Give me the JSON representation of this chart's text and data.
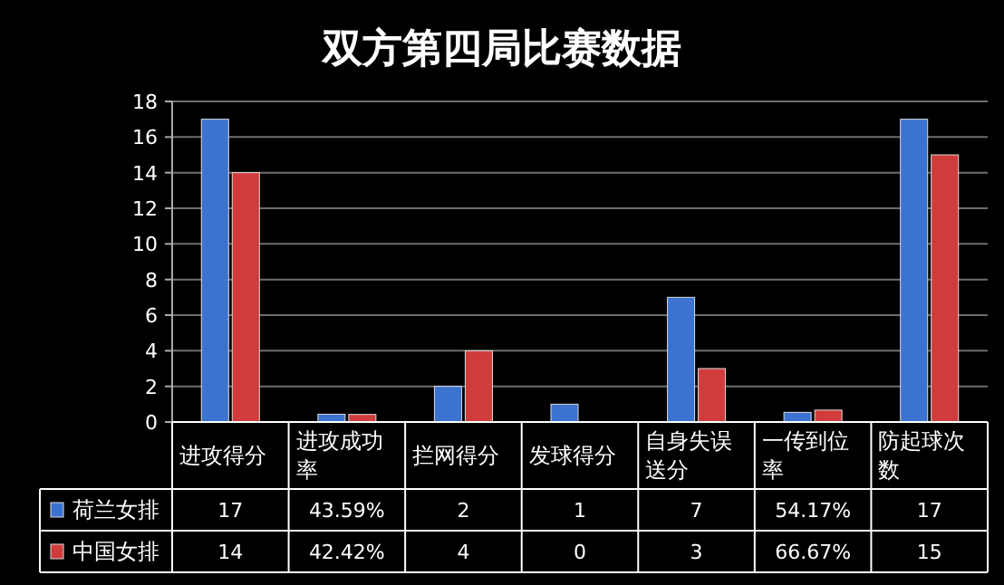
{
  "chart_data": {
    "type": "bar",
    "title": "双方第四局比赛数据",
    "categories": [
      "进攻得分",
      "进攻成功率",
      "拦网得分",
      "发球得分",
      "自身失误送分",
      "一传到位率",
      "防起球次数"
    ],
    "series": [
      {
        "name": "荷兰女排",
        "color": "#3c72d0",
        "values": [
          17,
          0.4359,
          2,
          1,
          7,
          0.5417,
          17
        ],
        "value_labels": [
          "17",
          "43.59%",
          "2",
          "1",
          "7",
          "54.17%",
          "17"
        ]
      },
      {
        "name": "中国女排",
        "color": "#d03c3c",
        "values": [
          14,
          0.4242,
          4,
          0,
          3,
          0.6667,
          15
        ],
        "value_labels": [
          "14",
          "42.42%",
          "4",
          "0",
          "3",
          "66.67%",
          "15"
        ]
      }
    ],
    "ylim": [
      0,
      18
    ],
    "yticks": [
      0,
      2,
      4,
      6,
      8,
      10,
      12,
      14,
      16,
      18
    ],
    "grid": "y",
    "legend": "bottom left"
  }
}
